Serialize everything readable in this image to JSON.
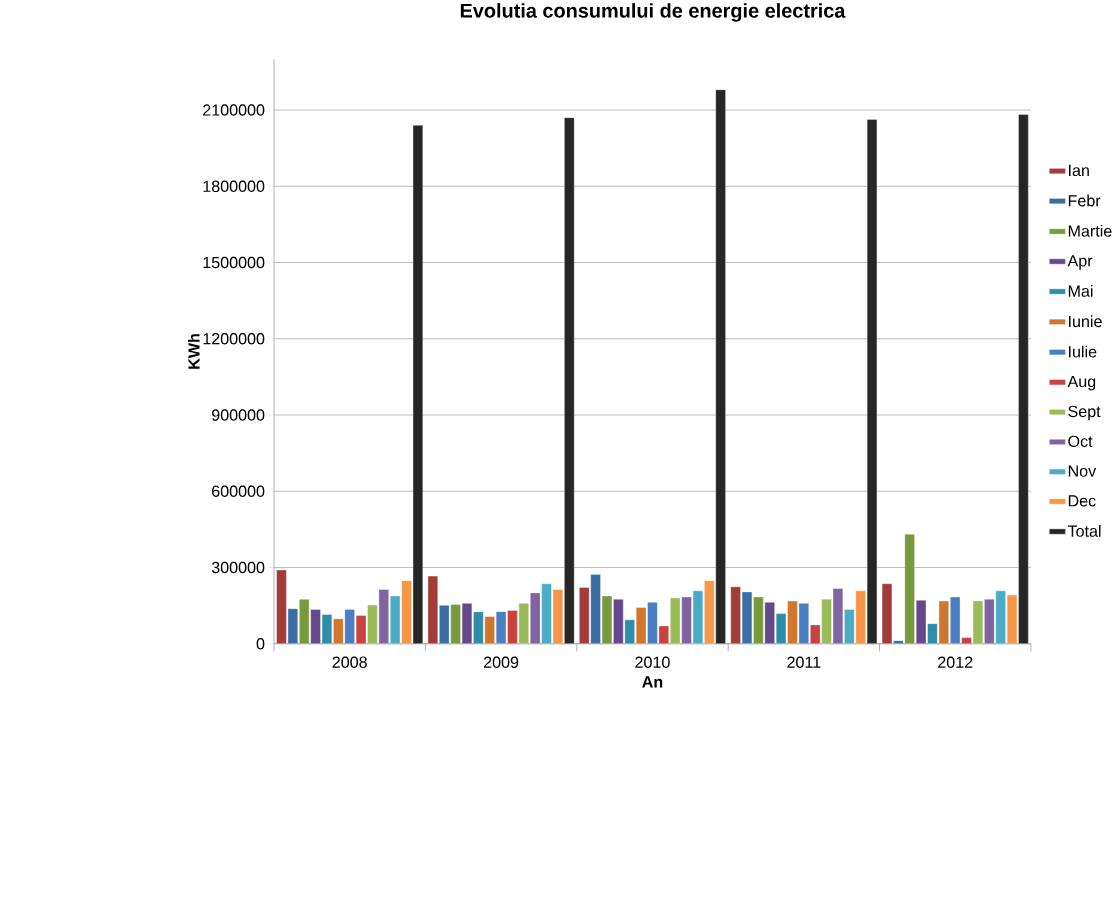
{
  "chart_data": {
    "type": "bar",
    "title": "Evolutia consumului de energie electrica",
    "xlabel": "An",
    "ylabel": "KWh",
    "categories": [
      "2008",
      "2009",
      "2010",
      "2011",
      "2012"
    ],
    "series": [
      {
        "name": "Ian",
        "color": "#a33b3a",
        "values": [
          290000,
          266000,
          221000,
          224000,
          236000
        ]
      },
      {
        "name": "Febr",
        "color": "#3a6ea5",
        "values": [
          138000,
          151000,
          273000,
          204000,
          12000
        ]
      },
      {
        "name": "Martie",
        "color": "#789a3d",
        "values": [
          175000,
          154000,
          188000,
          184000,
          431000
        ]
      },
      {
        "name": "Apr",
        "color": "#65498a",
        "values": [
          135000,
          159000,
          175000,
          163000,
          171000
        ]
      },
      {
        "name": "Mai",
        "color": "#2e8da8",
        "values": [
          115000,
          126000,
          94000,
          119000,
          79000
        ]
      },
      {
        "name": "Iunie",
        "color": "#d1772c",
        "values": [
          98000,
          107000,
          143000,
          168000,
          168000
        ]
      },
      {
        "name": "Iulie",
        "color": "#4a7fc4",
        "values": [
          135000,
          126000,
          163000,
          159000,
          184000
        ]
      },
      {
        "name": "Aug",
        "color": "#c9423f",
        "values": [
          111000,
          131000,
          70000,
          74000,
          24000
        ]
      },
      {
        "name": "Sept",
        "color": "#9bbb59",
        "values": [
          152000,
          159000,
          180000,
          175000,
          168000
        ]
      },
      {
        "name": "Oct",
        "color": "#8064a2",
        "values": [
          213000,
          200000,
          184000,
          217000,
          175000
        ]
      },
      {
        "name": "Nov",
        "color": "#4bacc6",
        "values": [
          188000,
          236000,
          208000,
          135000,
          208000
        ]
      },
      {
        "name": "Dec",
        "color": "#f79646",
        "values": [
          248000,
          213000,
          248000,
          208000,
          192000
        ]
      },
      {
        "name": "Total",
        "color": "#262626",
        "values": [
          2040000,
          2070000,
          2180000,
          2063000,
          2082000
        ]
      }
    ],
    "ylim": [
      0,
      2300000
    ],
    "yticks": [
      0,
      300000,
      600000,
      900000,
      1200000,
      1500000,
      1800000,
      2100000
    ],
    "grid": "y",
    "legend": "right"
  }
}
